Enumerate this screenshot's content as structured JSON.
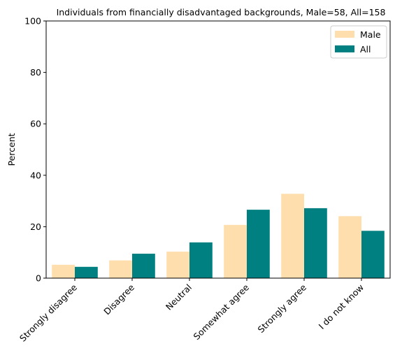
{
  "chart_data": {
    "type": "bar",
    "title": "Individuals from financially disadvantaged backgrounds, Male=58, All=158",
    "xlabel": "",
    "ylabel": "Percent",
    "ylim": [
      0,
      100
    ],
    "yticks": [
      0,
      20,
      40,
      60,
      80,
      100
    ],
    "categories": [
      "Strongly disagree",
      "Disagree",
      "Neutral",
      "Somewhat agree",
      "Strongly agree",
      "I do not know"
    ],
    "series": [
      {
        "name": "Male",
        "color": "#ffdead",
        "values": [
          5.2,
          6.9,
          10.3,
          20.7,
          32.8,
          24.1
        ]
      },
      {
        "name": "All",
        "color": "#008080",
        "values": [
          4.4,
          9.5,
          13.9,
          26.6,
          27.2,
          18.4
        ]
      }
    ],
    "grid": false,
    "legend_position": "top-right"
  }
}
